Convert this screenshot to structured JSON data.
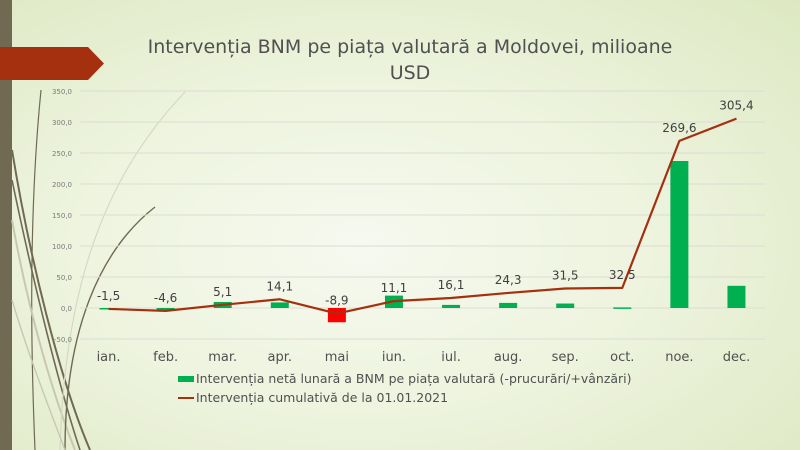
{
  "slide": {
    "title_line1": "Intervenția BNM pe piața valutară a Moldovei, milioane",
    "title_line2": "USD"
  },
  "colors": {
    "bar_positive": "#00b050",
    "bar_negative": "#ff0000",
    "line": "#a5300f",
    "accent_banner": "#a5300f",
    "side_bar": "#706a52"
  },
  "chart_data": {
    "type": "bar",
    "title": "Intervenția BNM pe piața valutară a Moldovei, milioane USD",
    "xlabel": "",
    "ylabel": "",
    "ylim": [
      -50,
      350
    ],
    "yticks": [
      -50,
      0,
      50,
      100,
      150,
      200,
      250,
      300,
      350
    ],
    "ytick_labels": [
      "-50,0",
      "0,0",
      "50,0",
      "100,0",
      "150,0",
      "200,0",
      "250,0",
      "300,0",
      "350,0"
    ],
    "grid": true,
    "legend_position": "bottom",
    "categories": [
      "ian.",
      "feb.",
      "mar.",
      "apr.",
      "mai",
      "iun.",
      "iul.",
      "aug.",
      "sep.",
      "oct.",
      "noe.",
      "dec."
    ],
    "series": [
      {
        "name": "Intervenția netă lunară a BNM pe piața valutară (-prucurări/+vânzări)",
        "type": "bar",
        "values": [
          -1.5,
          -3.1,
          9.7,
          9.0,
          -23.0,
          20.0,
          5.0,
          8.2,
          7.2,
          1.0,
          237.1,
          35.8
        ]
      },
      {
        "name": "Intervenția cumulativă de la 01.01.2021",
        "type": "line",
        "values": [
          -1.5,
          -4.6,
          5.1,
          14.1,
          -8.9,
          11.1,
          16.1,
          24.3,
          31.5,
          32.5,
          269.6,
          305.4
        ],
        "data_labels": [
          "-1,5",
          "-4,6",
          "5,1",
          "14,1",
          "-8,9",
          "11,1",
          "16,1",
          "24,3",
          "31,5",
          "32,5",
          "269,6",
          "305,4"
        ]
      }
    ]
  },
  "legend": {
    "items": [
      "Intervenția netă lunară a BNM pe piața valutară (-prucurări/+vânzări)",
      "Intervenția cumulativă de la 01.01.2021"
    ]
  }
}
